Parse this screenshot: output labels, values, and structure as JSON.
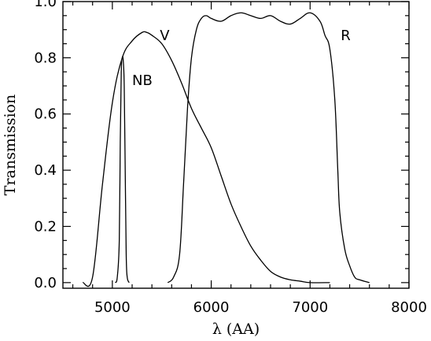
{
  "chart_data": {
    "type": "line",
    "title": "",
    "xlabel": "λ (AA)",
    "ylabel": "Transmission",
    "xlim": [
      4500,
      8000
    ],
    "ylim": [
      -0.02,
      1.0
    ],
    "x_major_ticks": [
      5000,
      6000,
      7000,
      8000
    ],
    "x_tick_labels": [
      "5000",
      "6000",
      "7000",
      "8000"
    ],
    "x_minor_step": 200,
    "y_major_ticks": [
      0.0,
      0.2,
      0.4,
      0.6,
      0.8,
      1.0
    ],
    "y_tick_labels": [
      "0.0",
      "0.2",
      "0.4",
      "0.6",
      "0.8",
      "1.0"
    ],
    "y_minor_step": 0.05,
    "grid": false,
    "legend": "none",
    "color": "#000000",
    "series": [
      {
        "name": "V",
        "x": [
          4700,
          4800,
          4900,
          5000,
          5100,
          5200,
          5300,
          5350,
          5400,
          5500,
          5600,
          5700,
          5800,
          5900,
          6000,
          6100,
          6200,
          6300,
          6400,
          6500,
          6600,
          6700,
          6800,
          6900,
          7000,
          7200
        ],
        "y": [
          0.0,
          0.02,
          0.35,
          0.64,
          0.8,
          0.86,
          0.89,
          0.89,
          0.88,
          0.85,
          0.79,
          0.71,
          0.62,
          0.55,
          0.48,
          0.38,
          0.28,
          0.2,
          0.13,
          0.08,
          0.04,
          0.02,
          0.01,
          0.005,
          0.0,
          0.0
        ]
      },
      {
        "name": "NB",
        "x": [
          5030,
          5050,
          5070,
          5080,
          5090,
          5100,
          5110,
          5120,
          5130,
          5140,
          5150,
          5170
        ],
        "y": [
          0.0,
          0.02,
          0.15,
          0.5,
          0.75,
          0.8,
          0.79,
          0.7,
          0.4,
          0.1,
          0.02,
          0.0
        ]
      },
      {
        "name": "R",
        "x": [
          5560,
          5620,
          5680,
          5720,
          5760,
          5800,
          5850,
          5900,
          5950,
          6000,
          6100,
          6200,
          6300,
          6400,
          6500,
          6600,
          6700,
          6800,
          6900,
          7000,
          7100,
          7150,
          7200,
          7250,
          7280,
          7300,
          7350,
          7400,
          7450,
          7500,
          7600
        ],
        "y": [
          0.0,
          0.02,
          0.1,
          0.35,
          0.62,
          0.8,
          0.9,
          0.94,
          0.95,
          0.94,
          0.93,
          0.95,
          0.96,
          0.95,
          0.94,
          0.95,
          0.93,
          0.92,
          0.94,
          0.96,
          0.93,
          0.88,
          0.83,
          0.65,
          0.4,
          0.25,
          0.12,
          0.06,
          0.02,
          0.01,
          0.0
        ]
      }
    ],
    "annotations": [
      {
        "text": "V",
        "x": 5480,
        "y": 0.88
      },
      {
        "text": "NB",
        "x": 5200,
        "y": 0.72
      },
      {
        "text": "R",
        "x": 7310,
        "y": 0.88
      }
    ]
  }
}
